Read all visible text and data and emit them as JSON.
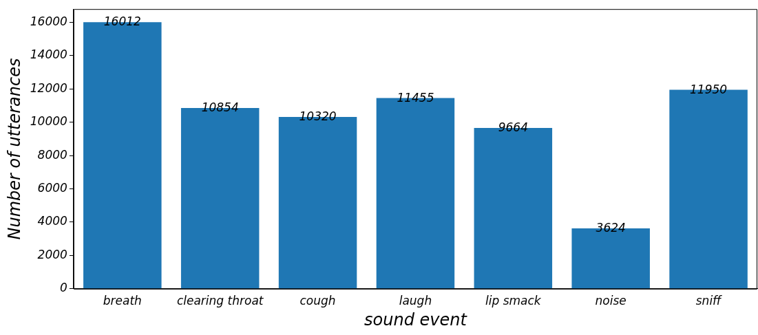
{
  "chart_data": {
    "type": "bar",
    "xlabel": "sound event",
    "ylabel": "Number of utterances",
    "categories": [
      "breath",
      "clearing throat",
      "cough",
      "laugh",
      "lip smack",
      "noise",
      "sniff"
    ],
    "values": [
      16012,
      10854,
      10320,
      11455,
      9664,
      3624,
      11950
    ],
    "color": "#1f77b4",
    "ylim": [
      0,
      16800
    ],
    "yticks": [
      0,
      2000,
      4000,
      6000,
      8000,
      10000,
      12000,
      14000,
      16000
    ],
    "grid": false,
    "legend": false,
    "data_labels": true
  }
}
